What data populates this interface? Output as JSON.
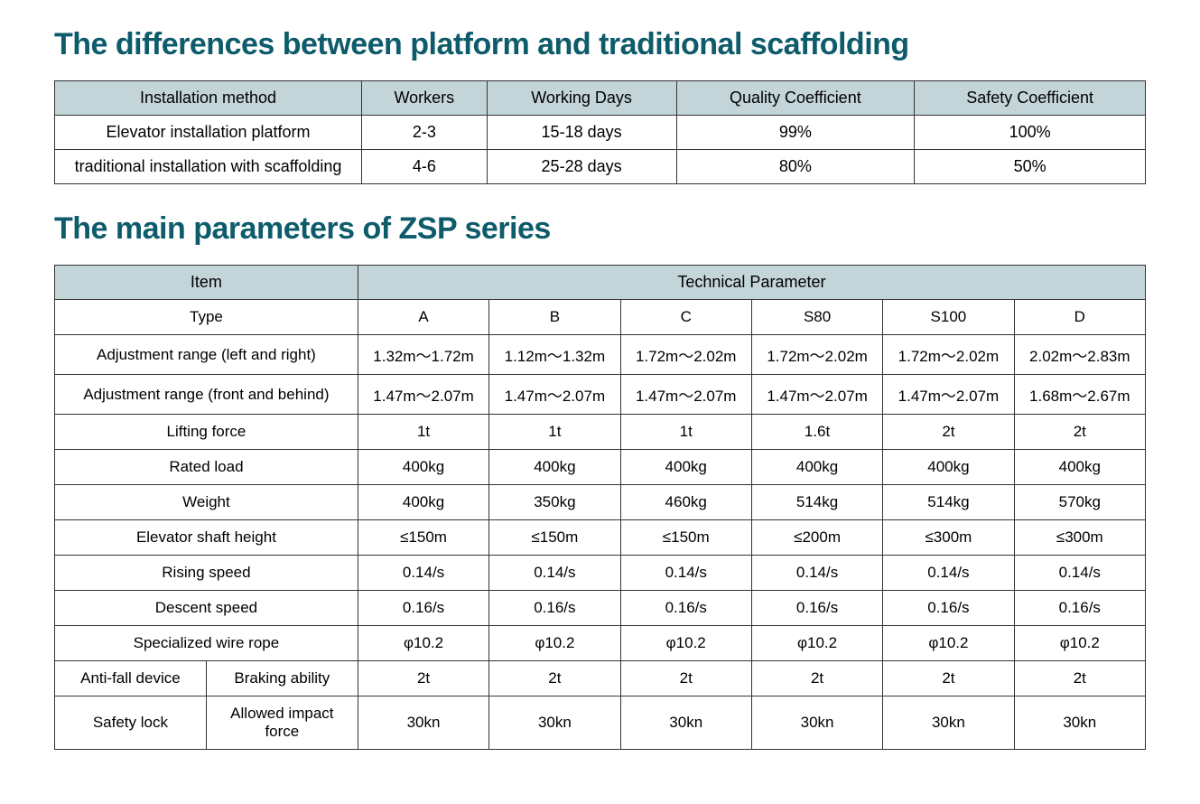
{
  "heading1": "The differences between platform and traditional scaffolding",
  "heading2": "The main parameters of ZSP series",
  "colors": {
    "heading": "#0d5b6b",
    "header_bg": "#c3d5d9",
    "border": "#333333",
    "text": "#000000",
    "background": "#ffffff"
  },
  "table1": {
    "headers": [
      "Installation method",
      "Workers",
      "Working Days",
      "Quality Coefficient",
      "Safety Coefficient"
    ],
    "rows": [
      [
        "Elevator installation platform",
        "2-3",
        "15-18 days",
        "99%",
        "100%"
      ],
      [
        "traditional installation with scaffolding",
        "4-6",
        "25-28 days",
        "80%",
        "50%"
      ]
    ]
  },
  "table2": {
    "header_item": "Item",
    "header_param": "Technical Parameter",
    "rows": [
      {
        "item": "Type",
        "sub": null,
        "vals": [
          "A",
          "B",
          "C",
          "S80",
          "S100",
          "D"
        ]
      },
      {
        "item": "Adjustment range (left and right)",
        "sub": null,
        "vals": [
          "1.32m～1.72m",
          "1.12m～1.32m",
          "1.72m～2.02m",
          "1.72m～2.02m",
          "1.72m～2.02m",
          "2.02m～2.83m"
        ]
      },
      {
        "item": "Adjustment range (front and behind)",
        "sub": null,
        "vals": [
          "1.47m～2.07m",
          "1.47m～2.07m",
          "1.47m～2.07m",
          "1.47m～2.07m",
          "1.47m～2.07m",
          "1.68m～2.67m"
        ]
      },
      {
        "item": "Lifting force",
        "sub": null,
        "vals": [
          "1t",
          "1t",
          "1t",
          "1.6t",
          "2t",
          "2t"
        ]
      },
      {
        "item": "Rated load",
        "sub": null,
        "vals": [
          "400kg",
          "400kg",
          "400kg",
          "400kg",
          "400kg",
          "400kg"
        ]
      },
      {
        "item": "Weight",
        "sub": null,
        "vals": [
          "400kg",
          "350kg",
          "460kg",
          "514kg",
          "514kg",
          "570kg"
        ]
      },
      {
        "item": "Elevator shaft  height",
        "sub": null,
        "vals": [
          "≤150m",
          "≤150m",
          "≤150m",
          "≤200m",
          "≤300m",
          "≤300m"
        ]
      },
      {
        "item": "Rising speed",
        "sub": null,
        "vals": [
          "0.14/s",
          "0.14/s",
          "0.14/s",
          "0.14/s",
          "0.14/s",
          "0.14/s"
        ]
      },
      {
        "item": "Descent speed",
        "sub": null,
        "vals": [
          "0.16/s",
          "0.16/s",
          "0.16/s",
          "0.16/s",
          "0.16/s",
          "0.16/s"
        ]
      },
      {
        "item": "Specialized wire rope",
        "sub": null,
        "vals": [
          "φ10.2",
          "φ10.2",
          "φ10.2",
          "φ10.2",
          "φ10.2",
          "φ10.2"
        ]
      },
      {
        "item": "Anti-fall device",
        "sub": "Braking ability",
        "vals": [
          "2t",
          "2t",
          "2t",
          "2t",
          "2t",
          "2t"
        ]
      },
      {
        "item": "Safety lock",
        "sub": "Allowed impact force",
        "vals": [
          "30kn",
          "30kn",
          "30kn",
          "30kn",
          "30kn",
          "30kn"
        ]
      }
    ]
  }
}
